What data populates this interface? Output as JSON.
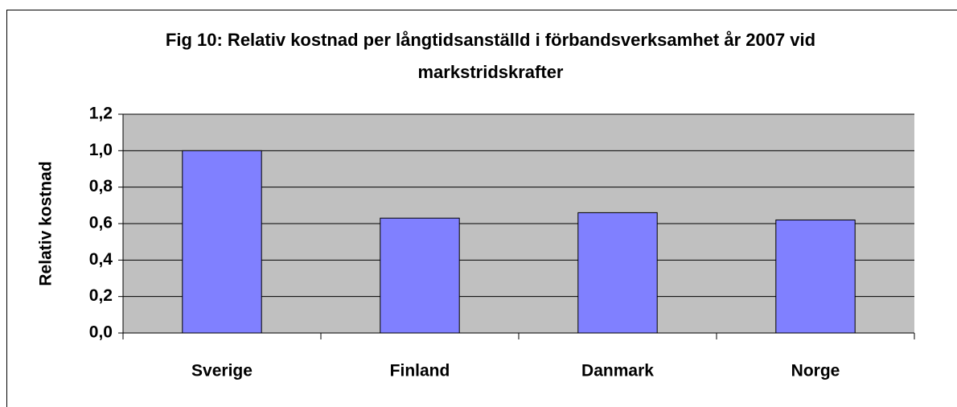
{
  "chart_data": {
    "type": "bar",
    "title": "Fig 10: Relativ kostnad per långtidsanställd i förbandsverksamhet  år 2007 vid markstridskrafter",
    "y_label": "Relativ kostnad",
    "categories": [
      "Sverige",
      "Finland",
      "Danmark",
      "Norge"
    ],
    "values": [
      1.0,
      0.63,
      0.66,
      0.62
    ],
    "color": "#8080ff",
    "ylim": [
      0,
      1.2
    ],
    "yticks": [
      {
        "value": 0,
        "label": "0,0"
      },
      {
        "value": 0.2,
        "label": "0,2"
      },
      {
        "value": 0.4,
        "label": "0,4"
      },
      {
        "value": 0.6,
        "label": "0,6"
      },
      {
        "value": 0.8,
        "label": "0,8"
      },
      {
        "value": 1.0,
        "label": "1,0"
      },
      {
        "value": 1.2,
        "label": "1,2"
      }
    ],
    "grid": true
  }
}
